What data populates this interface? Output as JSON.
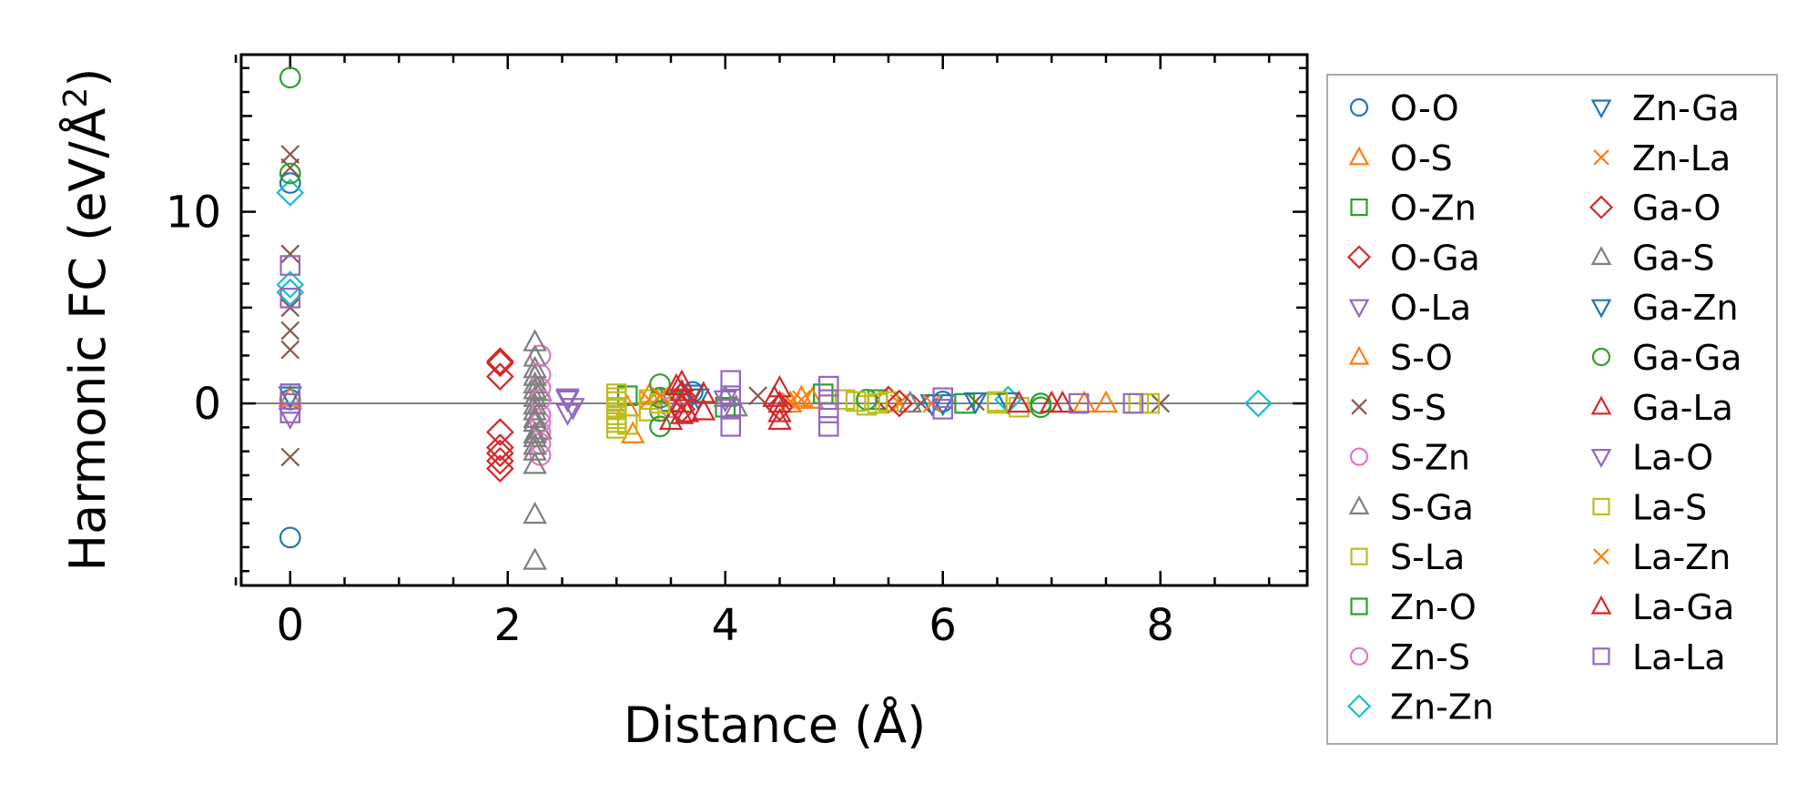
{
  "chart_data": {
    "type": "scatter",
    "title": "",
    "xlabel": "Distance (Å)",
    "ylabel_main": "Harmonic FC (eV/Å",
    "ylabel_sup": "2",
    "ylabel_close": ")",
    "xlim": [
      -0.45,
      9.35
    ],
    "ylim": [
      -9.5,
      18.2
    ],
    "xticks": [
      0,
      2,
      4,
      6,
      8
    ],
    "xtick_labels": [
      "0",
      "2",
      "4",
      "6",
      "8"
    ],
    "yticks": [
      0,
      10
    ],
    "ytick_labels": [
      "0",
      "10"
    ],
    "zero_line": 0,
    "legend_position": "outside-right",
    "series": [
      {
        "name": "O-O",
        "marker": "circle",
        "color": "#1f77b4",
        "points": [
          [
            0,
            -7
          ],
          [
            0,
            11.5
          ],
          [
            0,
            0.2
          ],
          [
            3.7,
            0.6
          ],
          [
            6.0,
            0.1
          ]
        ]
      },
      {
        "name": "O-S",
        "marker": "triangle-up",
        "color": "#ff7f0e",
        "points": [
          [
            0,
            0.3
          ],
          [
            3.15,
            -1.6
          ],
          [
            3.3,
            0.4
          ],
          [
            4.7,
            0.3
          ],
          [
            7.5,
            0
          ]
        ]
      },
      {
        "name": "O-Zn",
        "marker": "square",
        "color": "#2ca02c",
        "points": [
          [
            0,
            0.5
          ],
          [
            3.1,
            0.4
          ],
          [
            4.9,
            0.5
          ],
          [
            5.4,
            0.2
          ]
        ]
      },
      {
        "name": "O-Ga",
        "marker": "diamond",
        "color": "#d62728",
        "points": [
          [
            1.93,
            2.2
          ],
          [
            1.93,
            1.4
          ],
          [
            1.93,
            -1.5
          ],
          [
            1.93,
            -2.3
          ],
          [
            1.93,
            -3.4
          ],
          [
            3.6,
            -0.3
          ],
          [
            5.5,
            0.2
          ]
        ]
      },
      {
        "name": "O-La",
        "marker": "triangle-down",
        "color": "#9467bd",
        "points": [
          [
            0,
            -0.7
          ],
          [
            2.55,
            0.2
          ],
          [
            2.55,
            -0.5
          ],
          [
            3.5,
            0.3
          ]
        ]
      },
      {
        "name": "S-O",
        "marker": "triangle-up",
        "color": "#ff7f0e",
        "points": [
          [
            3.1,
            -0.2
          ],
          [
            4.8,
            0.2
          ],
          [
            4.6,
            0
          ],
          [
            7.3,
            0
          ]
        ]
      },
      {
        "name": "S-S",
        "marker": "x",
        "color": "#8c564b",
        "points": [
          [
            0,
            13
          ],
          [
            0,
            12.3
          ],
          [
            0,
            7.8
          ],
          [
            0,
            5
          ],
          [
            0,
            3.8
          ],
          [
            0,
            2.8
          ],
          [
            0,
            -2.8
          ],
          [
            4.3,
            0.4
          ],
          [
            5.8,
            0
          ],
          [
            6.3,
            0.1
          ],
          [
            8.0,
            0
          ]
        ]
      },
      {
        "name": "S-Zn",
        "marker": "circle",
        "color": "#e377c2",
        "points": [
          [
            2.3,
            2.5
          ],
          [
            2.3,
            0.8
          ],
          [
            2.3,
            -0.6
          ],
          [
            2.3,
            -1.5
          ],
          [
            2.3,
            -2.7
          ],
          [
            3.4,
            0.3
          ]
        ]
      },
      {
        "name": "S-Ga",
        "marker": "triangle-up",
        "color": "#7f7f7f",
        "points": [
          [
            2.25,
            3.2
          ],
          [
            2.25,
            2.4
          ],
          [
            2.25,
            1.8
          ],
          [
            2.25,
            1.0
          ],
          [
            2.25,
            0.3
          ],
          [
            2.25,
            -0.4
          ],
          [
            2.25,
            -1.0
          ],
          [
            2.25,
            -1.8
          ],
          [
            2.25,
            -2.5
          ],
          [
            2.25,
            -3.2
          ],
          [
            2.25,
            -5.8
          ],
          [
            2.25,
            -8.2
          ],
          [
            2.3,
            0.6
          ],
          [
            2.3,
            -1.4
          ],
          [
            4.1,
            -0.2
          ],
          [
            5.7,
            0
          ]
        ]
      },
      {
        "name": "S-La",
        "marker": "square",
        "color": "#bcbd22",
        "points": [
          [
            3.0,
            0.5
          ],
          [
            3.0,
            0.1
          ],
          [
            3.0,
            -0.3
          ],
          [
            3.0,
            -0.6
          ],
          [
            3.0,
            -1.0
          ],
          [
            3.0,
            -1.3
          ],
          [
            3.3,
            0.2
          ],
          [
            3.3,
            -0.4
          ],
          [
            5.1,
            0.2
          ],
          [
            5.3,
            -0.1
          ],
          [
            5.5,
            0.1
          ],
          [
            6.5,
            0
          ],
          [
            6.7,
            -0.2
          ],
          [
            7.8,
            0
          ]
        ]
      },
      {
        "name": "Zn-O",
        "marker": "square",
        "color": "#2ca02c",
        "points": [
          [
            3.5,
            0.1
          ],
          [
            4.0,
            -0.2
          ],
          [
            6.2,
            0
          ]
        ]
      },
      {
        "name": "Zn-S",
        "marker": "circle",
        "color": "#e377c2",
        "points": [
          [
            2.3,
            1.5
          ],
          [
            2.3,
            0.2
          ],
          [
            2.3,
            -1.0
          ],
          [
            2.3,
            -2.1
          ],
          [
            3.5,
            -0.2
          ]
        ]
      },
      {
        "name": "Zn-Zn",
        "marker": "diamond",
        "color": "#17becf",
        "points": [
          [
            0,
            11
          ],
          [
            0,
            6.2
          ],
          [
            0,
            5.8
          ],
          [
            6.6,
            0.2
          ],
          [
            8.9,
            0
          ]
        ]
      },
      {
        "name": "Zn-Ga",
        "marker": "triangle-down",
        "color": "#1f77b4",
        "points": [
          [
            0,
            0.4
          ],
          [
            3.75,
            0.3
          ],
          [
            6.0,
            0
          ],
          [
            6.6,
            0.1
          ]
        ]
      },
      {
        "name": "Zn-La",
        "marker": "x",
        "color": "#ff7f0e",
        "points": [
          [
            3.3,
            0.2
          ],
          [
            4.6,
            0.1
          ],
          [
            5.6,
            0
          ]
        ]
      },
      {
        "name": "Ga-O",
        "marker": "diamond",
        "color": "#d62728",
        "points": [
          [
            1.93,
            2.1
          ],
          [
            1.93,
            -2.6
          ],
          [
            1.93,
            -3.0
          ],
          [
            3.6,
            0.4
          ],
          [
            4.5,
            -0.2
          ],
          [
            5.6,
            0
          ]
        ]
      },
      {
        "name": "Ga-S",
        "marker": "triangle-up",
        "color": "#7f7f7f",
        "points": [
          [
            2.25,
            1.4
          ],
          [
            2.25,
            0.7
          ],
          [
            2.25,
            -0.1
          ],
          [
            2.25,
            -0.8
          ],
          [
            2.25,
            -1.6
          ],
          [
            2.25,
            -2.2
          ],
          [
            4.0,
            0.3
          ]
        ]
      },
      {
        "name": "Ga-Zn",
        "marker": "triangle-down",
        "color": "#1f77b4",
        "points": [
          [
            3.7,
            0.5
          ],
          [
            5.9,
            0
          ],
          [
            6.3,
            0.1
          ]
        ]
      },
      {
        "name": "Ga-Ga",
        "marker": "circle",
        "color": "#2ca02c",
        "points": [
          [
            0,
            17
          ],
          [
            0,
            12
          ],
          [
            3.4,
            1.0
          ],
          [
            3.4,
            0.3
          ],
          [
            3.4,
            -0.4
          ],
          [
            3.4,
            -1.2
          ],
          [
            5.3,
            0.2
          ],
          [
            6.9,
            0
          ],
          [
            6.9,
            -0.2
          ]
        ]
      },
      {
        "name": "Ga-La",
        "marker": "triangle-up",
        "color": "#d62728",
        "points": [
          [
            3.6,
            1.1
          ],
          [
            3.6,
            0.6
          ],
          [
            3.6,
            0
          ],
          [
            3.6,
            -0.6
          ],
          [
            3.5,
            -0.9
          ],
          [
            3.8,
            0.5
          ],
          [
            3.8,
            -0.4
          ],
          [
            4.5,
            0.8
          ],
          [
            4.5,
            0
          ],
          [
            4.5,
            -0.9
          ],
          [
            6.7,
            0
          ],
          [
            7.1,
            0
          ]
        ]
      },
      {
        "name": "La-O",
        "marker": "triangle-down",
        "color": "#9467bd",
        "points": [
          [
            2.55,
            0.3
          ],
          [
            2.6,
            -0.2
          ],
          [
            4.0,
            0.2
          ]
        ]
      },
      {
        "name": "La-S",
        "marker": "square",
        "color": "#bcbd22",
        "points": [
          [
            3.0,
            0.3
          ],
          [
            3.0,
            -0.2
          ],
          [
            3.0,
            -0.8
          ],
          [
            3.1,
            -1.1
          ],
          [
            3.4,
            0
          ],
          [
            5.2,
            0.1
          ],
          [
            5.4,
            0
          ],
          [
            6.5,
            0.1
          ],
          [
            7.9,
            0
          ]
        ]
      },
      {
        "name": "La-Zn",
        "marker": "x",
        "color": "#ff7f0e",
        "points": [
          [
            3.4,
            0.4
          ],
          [
            4.7,
            0.2
          ],
          [
            5.9,
            0
          ]
        ]
      },
      {
        "name": "La-Ga",
        "marker": "triangle-up",
        "color": "#d62728",
        "points": [
          [
            3.55,
            0.9
          ],
          [
            3.65,
            -0.5
          ],
          [
            4.45,
            0.3
          ],
          [
            4.5,
            -0.5
          ],
          [
            7.0,
            0
          ]
        ]
      },
      {
        "name": "La-La",
        "marker": "square",
        "color": "#9467bd",
        "points": [
          [
            0,
            7.2
          ],
          [
            0,
            5.5
          ],
          [
            0,
            0.5
          ],
          [
            0,
            0
          ],
          [
            0,
            -0.5
          ],
          [
            4.05,
            1.2
          ],
          [
            4.05,
            0.4
          ],
          [
            4.05,
            -0.3
          ],
          [
            4.05,
            -1.2
          ],
          [
            4.95,
            0.9
          ],
          [
            4.95,
            0.2
          ],
          [
            4.95,
            -0.5
          ],
          [
            4.95,
            -1.2
          ],
          [
            6.0,
            0.3
          ],
          [
            6.0,
            -0.3
          ],
          [
            7.25,
            0
          ],
          [
            7.75,
            0
          ]
        ]
      }
    ]
  }
}
